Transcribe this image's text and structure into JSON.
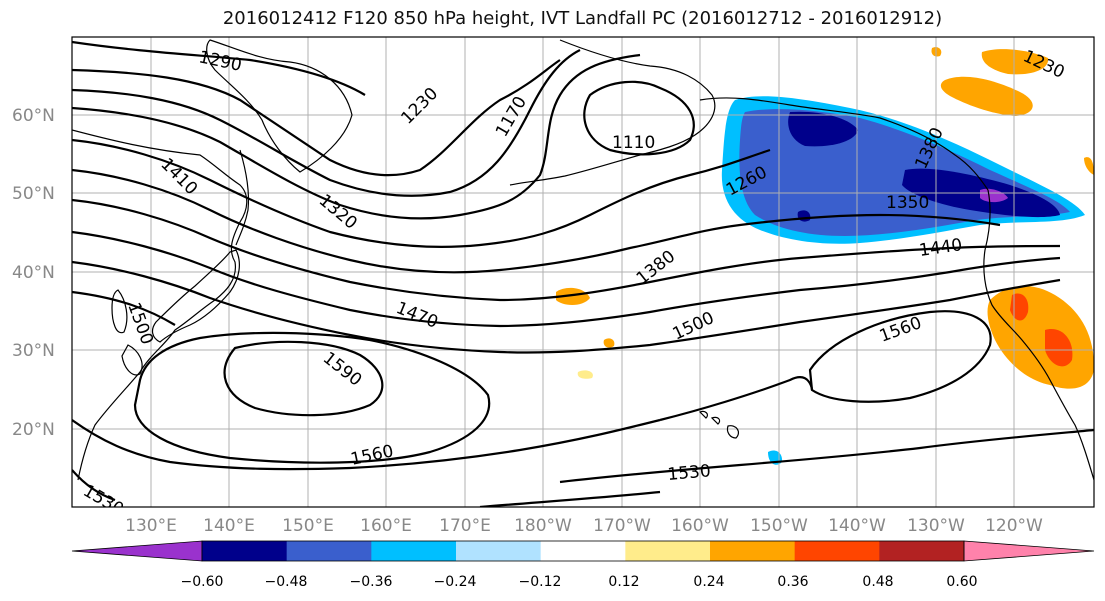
{
  "title": "2016012412 F120 850 hPa height, IVT Landfall PC (2016012712 - 2016012912)",
  "lat_labels": [
    "60°N",
    "50°N",
    "40°N",
    "30°N",
    "20°N"
  ],
  "lon_labels": [
    "130°E",
    "140°E",
    "150°E",
    "160°E",
    "170°E",
    "180°W",
    "170°W",
    "160°W",
    "150°W",
    "140°W",
    "130°W",
    "120°W"
  ],
  "contour_labels": [
    "1290",
    "1230",
    "1170",
    "1110",
    "1410",
    "1320",
    "1260",
    "1350",
    "1440",
    "1380",
    "1470",
    "1500",
    "1560",
    "1590",
    "1560",
    "1530",
    "1500",
    "1530",
    "1230",
    "1380"
  ],
  "colorbar": {
    "ticks": [
      "−0.60",
      "−0.48",
      "−0.36",
      "−0.24",
      "−0.12",
      "0.12",
      "0.24",
      "0.36",
      "0.48",
      "0.60"
    ],
    "colors": [
      "#9a32cd",
      "#00008b",
      "#3a5fcd",
      "#00bfff",
      "#b0e2ff",
      "#ffffff",
      "#ffec8b",
      "#ffa500",
      "#ff4500",
      "#b22222",
      "#ff82ab"
    ]
  }
}
